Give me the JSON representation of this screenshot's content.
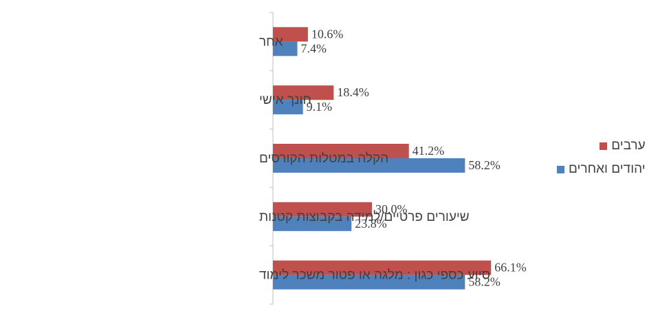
{
  "chart_data": {
    "type": "bar",
    "orientation": "horizontal",
    "categories": [
      "אחר",
      "חונך אישי",
      "הקלה במטלות הקורסים",
      "שיעורים פרטיים/למידה בקבוצות קטנות",
      "סיוע כספי כגון : מלגה או פטור משכר לימוד"
    ],
    "series": [
      {
        "name": "ערבים",
        "color": "#C0504D",
        "values": [
          10.6,
          18.4,
          41.2,
          30.0,
          66.1
        ],
        "labels": [
          "10.6%",
          "18.4%",
          "41.2%",
          "30.0%",
          "66.1%"
        ]
      },
      {
        "name": "יהודים ואחרים",
        "color": "#4F81BD",
        "values": [
          7.4,
          9.1,
          58.2,
          23.8,
          58.2
        ],
        "labels": [
          "7.4%",
          "9.1%",
          "58.2%",
          "23.8%",
          "58.2%"
        ]
      }
    ],
    "xlim": [
      0,
      100
    ],
    "grid": false,
    "legend_position": "right"
  }
}
